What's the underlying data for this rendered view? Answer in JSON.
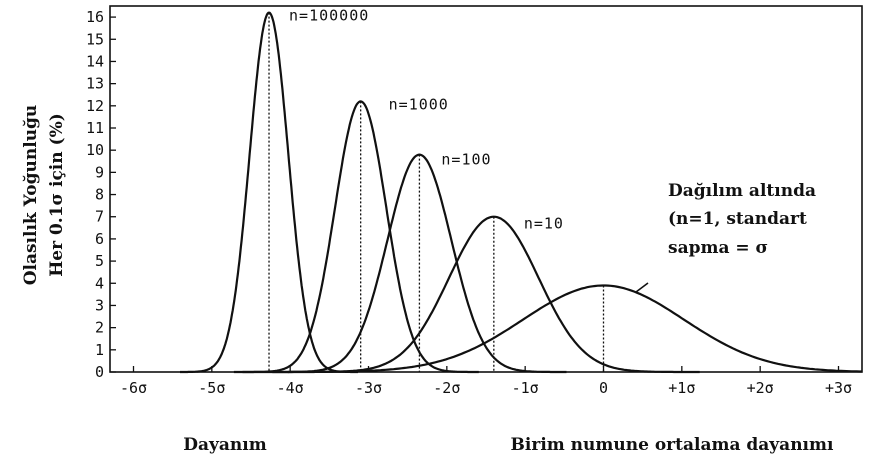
{
  "chart_data": {
    "type": "line",
    "ylabel_lines": [
      "Olasılık Yoğunluğu",
      "Her 0.1σ için (%)"
    ],
    "xlabel_left": "Dayanım",
    "xlabel_right": "Birim numune ortalama dayanımı",
    "x_ticks": [
      {
        "value": -6,
        "label": "-6σ"
      },
      {
        "value": -5,
        "label": "-5σ"
      },
      {
        "value": -4,
        "label": "-4σ"
      },
      {
        "value": -3,
        "label": "-3σ"
      },
      {
        "value": -2,
        "label": "-2σ"
      },
      {
        "value": -1,
        "label": "-1σ"
      },
      {
        "value": 0,
        "label": "0"
      },
      {
        "value": 1,
        "label": "+1σ"
      },
      {
        "value": 2,
        "label": "+2σ"
      },
      {
        "value": 3,
        "label": "+3σ"
      }
    ],
    "y_ticks": [
      0,
      1,
      2,
      3,
      4,
      5,
      6,
      7,
      8,
      9,
      10,
      11,
      12,
      13,
      14,
      15,
      16
    ],
    "xlim": [
      -6.3,
      3.3
    ],
    "ylim": [
      0,
      16.5
    ],
    "series": [
      {
        "label": "n=100000",
        "mean": -4.27,
        "peak": 16.2
      },
      {
        "label": "n=1000",
        "mean": -3.1,
        "peak": 12.2
      },
      {
        "label": "n=100",
        "mean": -2.35,
        "peak": 9.8
      },
      {
        "label": "n=10",
        "mean": -1.4,
        "peak": 7.0
      },
      {
        "label": "",
        "mean": 0,
        "peak": 3.9
      }
    ],
    "annotation_lines": [
      "Dağılım altında",
      "(n=1, standart",
      "sapma = σ"
    ]
  }
}
